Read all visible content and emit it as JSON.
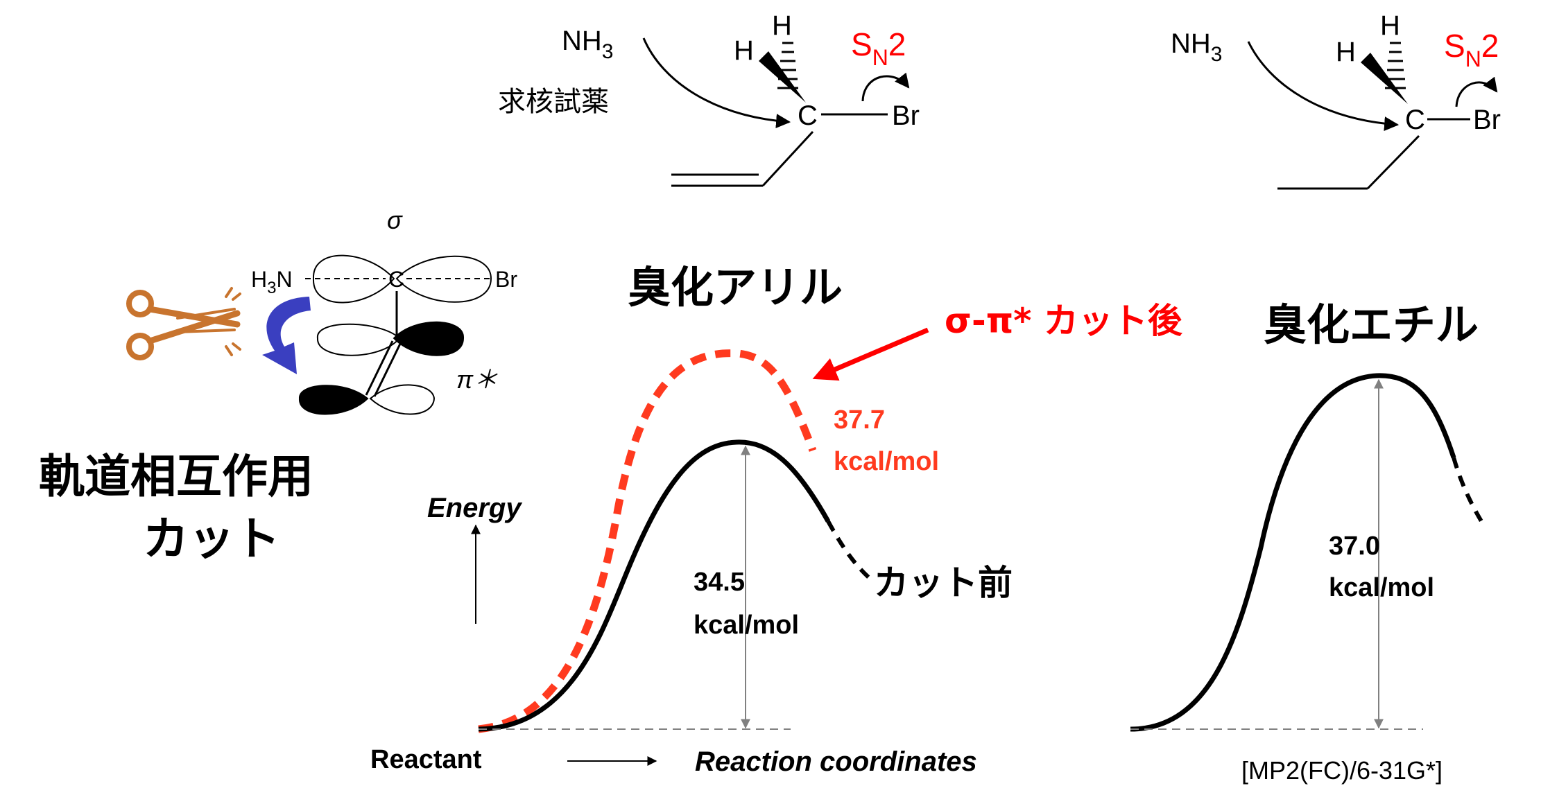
{
  "allyl_molecule": {
    "nucleophile_main": "NH",
    "nucleophile_sub": "3",
    "nucleophile_jp": "求核試薬",
    "hydrogen_left": "H",
    "hydrogen_top": "H",
    "carbon": "C",
    "bromine": "Br",
    "sn2_main": "S",
    "sn2_sub": "N",
    "sn2_num": "2"
  },
  "ethyl_molecule": {
    "nucleophile_main": "NH",
    "nucleophile_sub": "3",
    "hydrogen_left": "H",
    "hydrogen_top": "H",
    "carbon": "C",
    "bromine": "Br",
    "sn2_main": "S",
    "sn2_sub": "N",
    "sn2_num": "2"
  },
  "orbital_diagram": {
    "sigma": "σ",
    "pi_star": "π＊",
    "amine_h": "H",
    "amine_sub": "3",
    "amine_n": "N",
    "carbon": "C",
    "bromine": "Br",
    "caption_line1": "軌道相互作用",
    "caption_line2": "カット"
  },
  "allyl_energy": {
    "title": "臭化アリル",
    "cut_after_label": "σ-π* カット後",
    "cut_after_value": "37.7",
    "cut_after_unit": "kcal/mol",
    "cut_before_value": "34.5",
    "cut_before_unit": "kcal/mol",
    "cut_before_label": "カット前",
    "y_axis_label": "Energy",
    "reactant_label": "Reactant",
    "x_axis_label": "Reaction coordinates"
  },
  "ethyl_energy": {
    "title": "臭化エチル",
    "value": "37.0",
    "unit": "kcal/mol",
    "method": "[MP2(FC)/6-31G*]"
  },
  "colors": {
    "red_label": "#ff0000",
    "dashed_curve": "#ff3a1f",
    "curved_arrow": "#3a3fc0",
    "scissors": "#c8742e"
  }
}
